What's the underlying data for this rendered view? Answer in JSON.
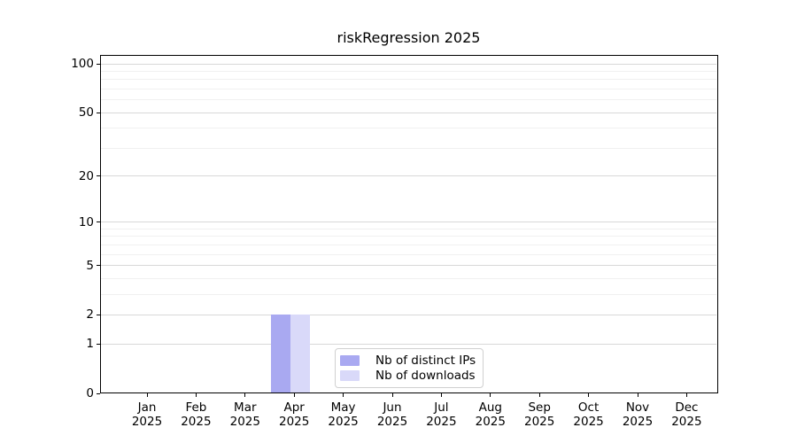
{
  "window": {
    "background": "#ffffff"
  },
  "chart_data": {
    "type": "bar",
    "title": "riskRegression 2025",
    "categories": [
      "Jan 2025",
      "Feb 2025",
      "Mar 2025",
      "Apr 2025",
      "May 2025",
      "Jun 2025",
      "Jul 2025",
      "Aug 2025",
      "Sep 2025",
      "Oct 2025",
      "Nov 2025",
      "Dec 2025"
    ],
    "series": [
      {
        "name": "Nb of distinct IPs",
        "color": "#a9a9f1",
        "values": [
          0,
          0,
          0,
          2,
          0,
          0,
          0,
          0,
          0,
          0,
          0,
          0
        ]
      },
      {
        "name": "Nb of downloads",
        "color": "#d9d9f9",
        "values": [
          0,
          0,
          0,
          2,
          0,
          0,
          0,
          0,
          0,
          0,
          0,
          0
        ]
      }
    ],
    "xlabel": "",
    "ylabel": "",
    "yscale": "log1p",
    "ylim": [
      0,
      113.4
    ],
    "yticks_major": [
      0,
      1,
      2,
      5,
      10,
      20,
      50,
      100
    ],
    "yticks_minor": [
      3,
      4,
      6,
      7,
      8,
      9,
      30,
      40,
      60,
      70,
      80,
      90
    ],
    "grid": "horizontal",
    "legend_position": "inside-lower-center",
    "colors": {
      "grid_major": "#d8d8d8",
      "grid_minor": "#f0f0f0",
      "axis": "#000000",
      "text": "#000000",
      "background": "#ffffff"
    }
  }
}
